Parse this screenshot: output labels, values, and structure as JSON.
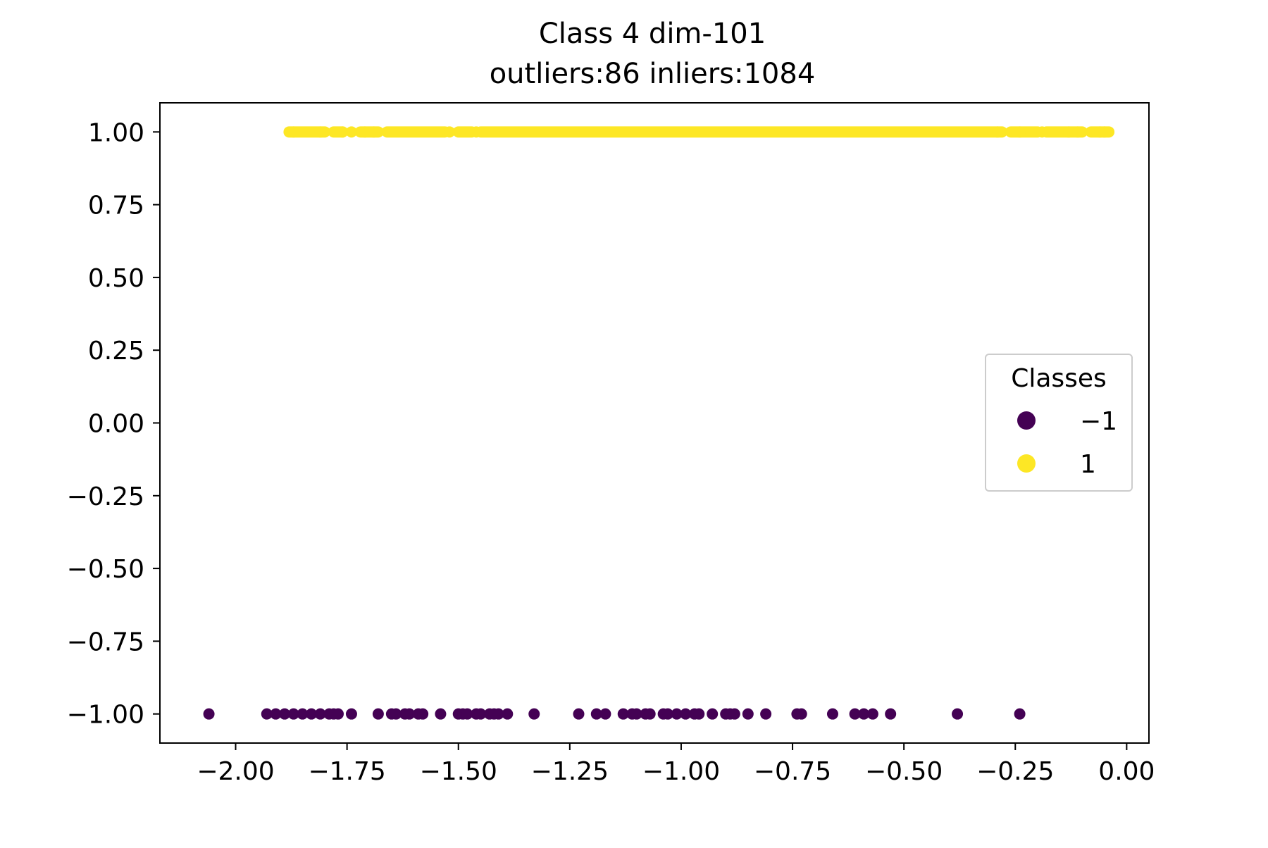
{
  "chart_data": {
    "type": "scatter",
    "title": "Class 4 dim-101",
    "subtitle": "outliers:86  inliers:1084",
    "xlabel": "",
    "ylabel": "",
    "xlim": [
      -2.17,
      0.05
    ],
    "ylim": [
      -1.1,
      1.1
    ],
    "xticks": [
      -2.0,
      -1.75,
      -1.5,
      -1.25,
      -1.0,
      -0.75,
      -0.5,
      -0.25,
      0.0
    ],
    "xtick_labels": [
      "−2.00",
      "−1.75",
      "−1.50",
      "−1.25",
      "−1.00",
      "−0.75",
      "−0.50",
      "−0.25",
      "0.00"
    ],
    "yticks": [
      1.0,
      0.75,
      0.5,
      0.25,
      0.0,
      -0.25,
      -0.5,
      -0.75,
      -1.0
    ],
    "ytick_labels": [
      "1.00",
      "0.75",
      "0.50",
      "0.25",
      "0.00",
      "−0.25",
      "−0.50",
      "−0.75",
      "−1.00"
    ],
    "grid": false,
    "legend": {
      "title": "Classes",
      "placement": "center-right",
      "entries": [
        {
          "label": "−1",
          "color": "#440154"
        },
        {
          "label": "1",
          "color": "#fde725"
        }
      ]
    },
    "series": [
      {
        "class": -1,
        "color": "#440154",
        "y": -1.0,
        "x": [
          -2.06,
          -1.93,
          -1.91,
          -1.89,
          -1.87,
          -1.85,
          -1.83,
          -1.81,
          -1.79,
          -1.78,
          -1.77,
          -1.74,
          -1.68,
          -1.65,
          -1.64,
          -1.62,
          -1.61,
          -1.59,
          -1.58,
          -1.54,
          -1.5,
          -1.49,
          -1.48,
          -1.46,
          -1.45,
          -1.43,
          -1.42,
          -1.41,
          -1.39,
          -1.33,
          -1.23,
          -1.19,
          -1.17,
          -1.13,
          -1.11,
          -1.1,
          -1.08,
          -1.07,
          -1.04,
          -1.03,
          -1.01,
          -0.99,
          -0.97,
          -0.96,
          -0.93,
          -0.9,
          -0.89,
          -0.88,
          -0.85,
          -0.81,
          -0.74,
          -0.73,
          -0.66,
          -0.61,
          -0.59,
          -0.57,
          -0.53,
          -0.38,
          -0.24
        ]
      },
      {
        "class": 1,
        "color": "#fde725",
        "y": 1.0,
        "ranges": [
          [
            -1.88,
            -1.8
          ],
          [
            -1.78,
            -1.76
          ],
          [
            -1.72,
            -1.68
          ],
          [
            -1.66,
            -1.53
          ],
          [
            -1.5,
            -1.47
          ],
          [
            -1.45,
            -0.28
          ],
          [
            -0.26,
            -0.2
          ],
          [
            -0.18,
            -0.1
          ],
          [
            -0.08,
            -0.04
          ]
        ],
        "x": [
          -1.87,
          -1.81,
          -1.76,
          -1.74,
          -1.71,
          -1.69,
          -1.52,
          -1.46,
          -0.29,
          -0.24,
          -0.19,
          -0.13,
          -0.11,
          -0.06,
          -0.05
        ]
      }
    ]
  }
}
